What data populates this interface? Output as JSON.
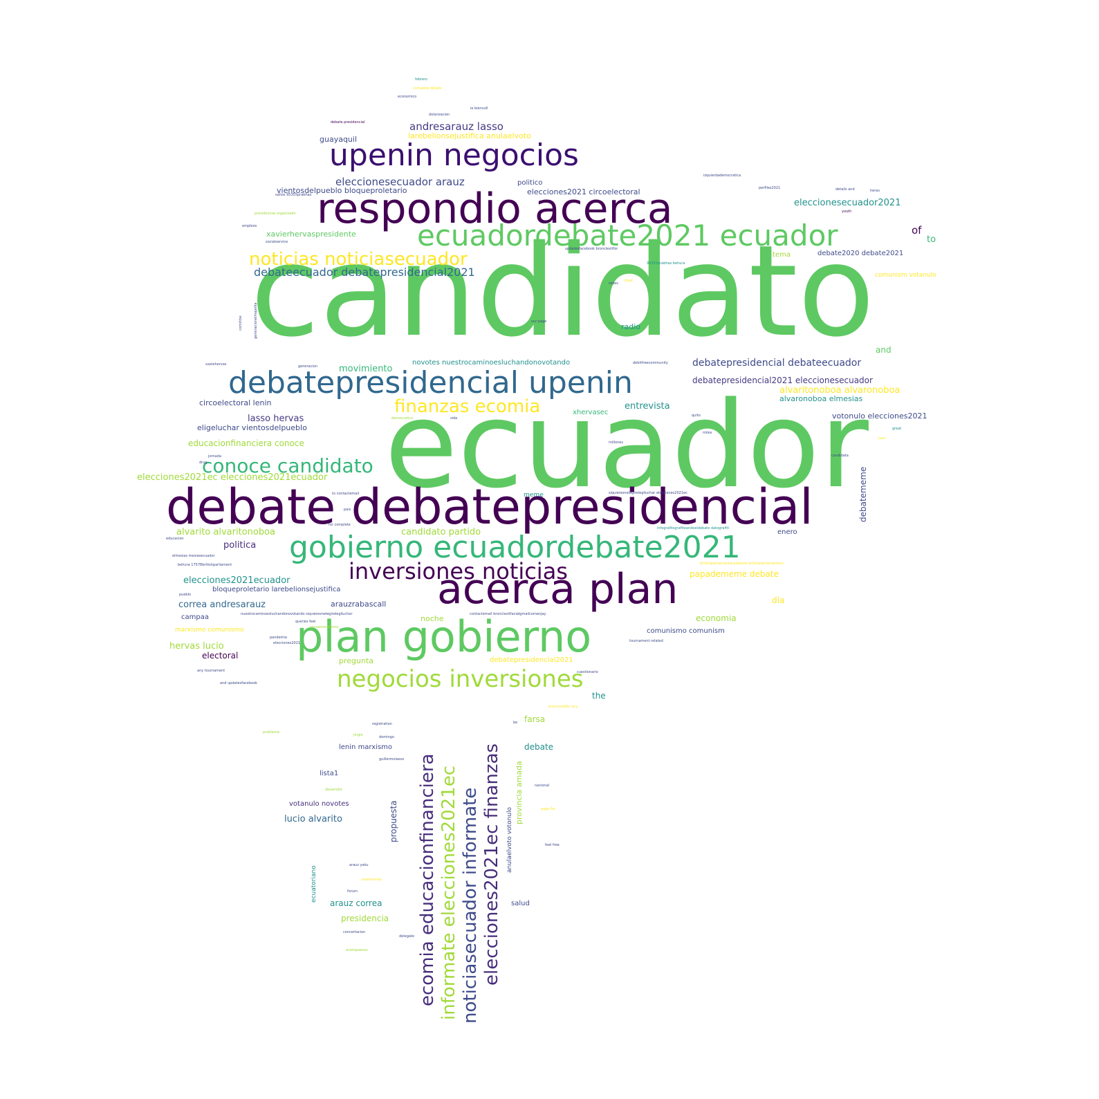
{
  "word_cloud": {
    "words": [
      {
        "text": "candidato",
        "color": "#5ec962"
      },
      {
        "text": "ecuador",
        "color": "#5ec962"
      },
      {
        "text": "debate debatepresidencial",
        "color": "#440154"
      },
      {
        "text": "respondio acerca",
        "color": "#440154"
      },
      {
        "text": "acerca plan",
        "color": "#440154"
      },
      {
        "text": "plan gobierno",
        "color": "#5ec962"
      },
      {
        "text": "upenin negocios",
        "color": "#3b0f70"
      },
      {
        "text": "debatepresidencial upenin",
        "color": "#31688e"
      },
      {
        "text": "gobierno ecuadordebate2021",
        "color": "#35b779"
      },
      {
        "text": "ecuadordebate2021 ecuador",
        "color": "#5ec962"
      },
      {
        "text": "inversiones noticias",
        "color": "#440154"
      },
      {
        "text": "negocios inversiones",
        "color": "#a0da39"
      },
      {
        "text": "conoce candidato",
        "color": "#35b779"
      },
      {
        "text": "noticias noticiasecuador",
        "color": "#fde725"
      },
      {
        "text": "finanzas ecomia",
        "color": "#fde725"
      },
      {
        "text": "ecomia educacionfinanciera",
        "color": "#472d7b"
      },
      {
        "text": "informate elecciones2021ec",
        "color": "#a0da39"
      },
      {
        "text": "noticiasecuador informate",
        "color": "#3e4a89"
      },
      {
        "text": "elecciones2021ec finanzas",
        "color": "#472d7b"
      },
      {
        "text": "debateecuador debatepresidencial2021",
        "color": "#31688e"
      },
      {
        "text": "andresarauz lasso",
        "color": "#443983"
      },
      {
        "text": "eleccionesecuador arauz",
        "color": "#3e4a89"
      },
      {
        "text": "guayaquil",
        "color": "#3e4a89"
      },
      {
        "text": "larebelionsejustifica anulaelvoto",
        "color": "#fde725"
      },
      {
        "text": "vientosdelpueblo bloqueproletario",
        "color": "#3e4a89"
      },
      {
        "text": "xavierhervaspresidente",
        "color": "#5ec962"
      },
      {
        "text": "politico",
        "color": "#3e4a89"
      },
      {
        "text": "elecciones2021 circoelectoral",
        "color": "#3e4a89"
      },
      {
        "text": "eleccionesecuador2021",
        "color": "#21918c"
      },
      {
        "text": "of",
        "color": "#440154"
      },
      {
        "text": "to",
        "color": "#35b779"
      },
      {
        "text": "tema",
        "color": "#a0da39"
      },
      {
        "text": "debate2020 debate2021",
        "color": "#3e4a89"
      },
      {
        "text": "comunism votanulo",
        "color": "#fde725"
      },
      {
        "text": "radio",
        "color": "#21918c"
      },
      {
        "text": "and",
        "color": "#5ec962"
      },
      {
        "text": "movimiento",
        "color": "#35b779"
      },
      {
        "text": "novotes nuestrocaminoesluchandonovotando",
        "color": "#21918c"
      },
      {
        "text": "debatepresidencial debateecuador",
        "color": "#3e4a89"
      },
      {
        "text": "debatepresidencial2021 eleccionesecuador",
        "color": "#443983"
      },
      {
        "text": "alvaritonoboa alvaronoboa",
        "color": "#fde725"
      },
      {
        "text": "alvaronoboa elmesias",
        "color": "#21918c"
      },
      {
        "text": "votonulo elecciones2021",
        "color": "#3e4a89"
      },
      {
        "text": "entrevista",
        "color": "#21918c"
      },
      {
        "text": "xhervasec",
        "color": "#35b779"
      },
      {
        "text": "circoelectoral lenin",
        "color": "#3e4a89"
      },
      {
        "text": "lasso hervas",
        "color": "#443983"
      },
      {
        "text": "eligeluchar vientosdelpueblo",
        "color": "#3e4a89"
      },
      {
        "text": "educacionfinanciera conoce",
        "color": "#a0da39"
      },
      {
        "text": "elecciones2021ec elecciones2021ecuador",
        "color": "#a0da39"
      },
      {
        "text": "meme",
        "color": "#21918c"
      },
      {
        "text": "debatememe",
        "color": "#3e4a89"
      },
      {
        "text": "alvarito alvaritonoboa",
        "color": "#a0da39"
      },
      {
        "text": "candidato partido",
        "color": "#a0da39"
      },
      {
        "text": "enero",
        "color": "#3e4a89"
      },
      {
        "text": "politica",
        "color": "#472d7b"
      },
      {
        "text": "papadememe debate",
        "color": "#fde725"
      },
      {
        "text": "elecciones2021ecuador",
        "color": "#21918c"
      },
      {
        "text": "bloqueproletario larebelionsejustifica",
        "color": "#3e4a89"
      },
      {
        "text": "correa andresarauz",
        "color": "#31688e"
      },
      {
        "text": "arauzrabascall",
        "color": "#3e4a89"
      },
      {
        "text": "dia",
        "color": "#fde725"
      },
      {
        "text": "campaa",
        "color": "#3e4a89"
      },
      {
        "text": "noche",
        "color": "#a0da39"
      },
      {
        "text": "economia",
        "color": "#a0da39"
      },
      {
        "text": "marxismo comunismo",
        "color": "#fde725"
      },
      {
        "text": "comunismo comunism",
        "color": "#3e4a89"
      },
      {
        "text": "hervas lucio",
        "color": "#a0da39"
      },
      {
        "text": "electoral",
        "color": "#440154"
      },
      {
        "text": "pregunta",
        "color": "#a0da39"
      },
      {
        "text": "debatepresidencial2021",
        "color": "#fde725"
      },
      {
        "text": "the",
        "color": "#21918c"
      },
      {
        "text": "farsa",
        "color": "#a0da39"
      },
      {
        "text": "debate",
        "color": "#21918c"
      },
      {
        "text": "lenin marxismo",
        "color": "#3e4a89"
      },
      {
        "text": "lista1",
        "color": "#3e4a89"
      },
      {
        "text": "votanulo novotes",
        "color": "#472d7b"
      },
      {
        "text": "lucio alvarito",
        "color": "#31688e"
      },
      {
        "text": "propuesta",
        "color": "#3e4a89"
      },
      {
        "text": "provincia amada",
        "color": "#a0da39"
      },
      {
        "text": "anulaelvoto votonulo",
        "color": "#3e4a89"
      },
      {
        "text": "arauz correa",
        "color": "#21918c"
      },
      {
        "text": "presidencia",
        "color": "#a0da39"
      },
      {
        "text": "salud",
        "color": "#3e4a89"
      },
      {
        "text": "ecuatoriano",
        "color": "#21918c"
      },
      {
        "text": "febrero",
        "color": "#21918c"
      },
      {
        "text": "complete details",
        "color": "#fde725"
      },
      {
        "text": "economico",
        "color": "#3e4a89"
      },
      {
        "text": "dolarizacion",
        "color": "#3e4a89"
      },
      {
        "text": "ie bienvxll",
        "color": "#3e4a89"
      },
      {
        "text": "debate presidencial",
        "color": "#440154"
      },
      {
        "text": "sahos 95355prabhas",
        "color": "#3e4a89"
      },
      {
        "text": "izquierdademocratica",
        "color": "#3e4a89"
      },
      {
        "text": "perfiles2021",
        "color": "#3e4a89"
      },
      {
        "text": "details and",
        "color": "#3e4a89"
      },
      {
        "text": "heras",
        "color": "#3e4a89"
      },
      {
        "text": "presidencial organizado",
        "color": "#a0da39"
      },
      {
        "text": "socialservice",
        "color": "#3e4a89"
      },
      {
        "text": "empleos",
        "color": "#3e4a89"
      },
      {
        "text": "youth",
        "color": "#440154"
      },
      {
        "text": "updatesfacebook bronclexitfor",
        "color": "#3e4a89"
      },
      {
        "text": "95355prabhas behura",
        "color": "#21918c"
      },
      {
        "text": "redes",
        "color": "#3e4a89"
      },
      {
        "text": "clase",
        "color": "#fde725"
      },
      {
        "text": "comitibe",
        "color": "#3e4a89"
      },
      {
        "text": "generacionelmajeñla",
        "color": "#3e4a89"
      },
      {
        "text": "our page",
        "color": "#3e4a89"
      },
      {
        "text": "xaxiehervas",
        "color": "#3e4a89"
      },
      {
        "text": "generacion",
        "color": "#3e4a89"
      },
      {
        "text": "debitfreecommunity",
        "color": "#3e4a89"
      },
      {
        "text": "democratica",
        "color": "#a0da39"
      },
      {
        "text": "sida",
        "color": "#3e4a89"
      },
      {
        "text": "quito",
        "color": "#3e4a89"
      },
      {
        "text": "miles",
        "color": "#3e4a89"
      },
      {
        "text": "millones",
        "color": "#3e4a89"
      },
      {
        "text": "great",
        "color": "#21918c"
      },
      {
        "text": "juan",
        "color": "#fde725"
      },
      {
        "text": "candidata",
        "color": "#3e4a89"
      },
      {
        "text": "jornada",
        "color": "#3e4a89"
      },
      {
        "text": "drug",
        "color": "#3e4a89"
      },
      {
        "text": "siquieresnelegirelegiluchar elecciones2021ec",
        "color": "#3e4a89"
      },
      {
        "text": "to contactemail",
        "color": "#3e4a89"
      },
      {
        "text": "pais",
        "color": "#3e4a89"
      },
      {
        "text": "for complete",
        "color": "#3e4a89"
      },
      {
        "text": "infografitsgrafiteandoeldebate datografiti",
        "color": "#21918c"
      },
      {
        "text": "educacion",
        "color": "#3e4a89"
      },
      {
        "text": "elmesias mesiasecuador",
        "color": "#3e4a89"
      },
      {
        "text": "behura 17578britishparliament",
        "color": "#3e4a89"
      },
      {
        "text": "britishparliamentarydebate britishparliamentary",
        "color": "#fde725"
      },
      {
        "text": "pueblo",
        "color": "#3e4a89"
      },
      {
        "text": "nuestrocaminoesluchandonovotando siquieresnelegirelegiluchar",
        "color": "#3e4a89"
      },
      {
        "text": "contactemail bronclexitfacialgmailcomenjay",
        "color": "#3e4a89"
      },
      {
        "text": "queries feel",
        "color": "#3e4a89"
      },
      {
        "text": "pandemia",
        "color": "#3e4a89"
      },
      {
        "text": "elecciones2021",
        "color": "#3e4a89"
      },
      {
        "text": "tournament related",
        "color": "#3e4a89"
      },
      {
        "text": "sensacionalismo",
        "color": "#a0da39"
      },
      {
        "text": "cuestionario",
        "color": "#3e4a89"
      },
      {
        "text": "any tournament",
        "color": "#3e4a89"
      },
      {
        "text": "and updatesfacebook",
        "color": "#3e4a89"
      },
      {
        "text": "registration",
        "color": "#3e4a89"
      },
      {
        "text": "problema",
        "color": "#a0da39"
      },
      {
        "text": "jingle",
        "color": "#a0da39"
      },
      {
        "text": "domingo",
        "color": "#3e4a89"
      },
      {
        "text": "guillermolasso",
        "color": "#3e4a89"
      },
      {
        "text": "desarrollo",
        "color": "#a0da39"
      },
      {
        "text": "nacional",
        "color": "#3e4a89"
      },
      {
        "text": "page for",
        "color": "#fde725"
      },
      {
        "text": "feel free",
        "color": "#3e4a89"
      },
      {
        "text": "arauz yaku",
        "color": "#3e4a89"
      },
      {
        "text": "ecuatoriano",
        "color": "#21918c"
      },
      {
        "text": "concertacion",
        "color": "#3e4a89"
      },
      {
        "text": "delegate",
        "color": "#3e4a89"
      },
      {
        "text": "acompaanos",
        "color": "#a0da39"
      },
      {
        "text": "forum",
        "color": "#3e4a89"
      },
      {
        "text": "cesarmonta",
        "color": "#fde725"
      },
      {
        "text": "bronclexitfor any",
        "color": "#fde725"
      },
      {
        "text": "be",
        "color": "#3e4a89"
      }
    ]
  }
}
